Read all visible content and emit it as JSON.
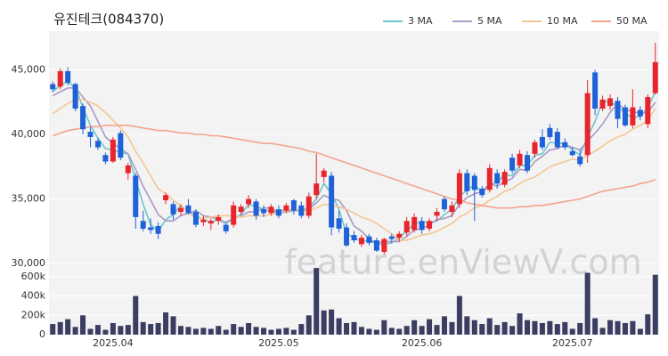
{
  "chart_data": [
    {
      "type": "candlestick",
      "title": "유진테크(084370)",
      "watermark": "feature.enViewV.com",
      "up_color": "#e8242c",
      "down_color": "#1f62d8",
      "open": [
        43900,
        43700,
        44900,
        43900,
        42200,
        40200,
        39500,
        38400,
        37900,
        40100,
        37000,
        36800,
        33300,
        32800,
        32900,
        34900,
        34600,
        34000,
        34500,
        34000,
        33200,
        33100,
        33300,
        33000,
        33000,
        34000,
        34600,
        34800,
        34200,
        33900,
        34200,
        34100,
        34900,
        34500,
        33700,
        35300,
        36700,
        36800,
        33500,
        32800,
        32200,
        31500,
        32100,
        31800,
        30900,
        32100,
        32000,
        32400,
        32600,
        33300,
        32700,
        33700,
        35000,
        34000,
        34600,
        37000,
        36800,
        35800,
        35700,
        37000,
        36100,
        38200,
        37600,
        38400,
        38500,
        39800,
        40500,
        40200,
        39400,
        38700,
        38300,
        38400,
        44800,
        42000,
        42200,
        42600,
        42100,
        40700,
        41900,
        40800,
        43200
      ],
      "high": [
        44100,
        45100,
        45200,
        44000,
        42400,
        40600,
        39700,
        38600,
        39800,
        40300,
        37800,
        37000,
        34100,
        33500,
        33200,
        35500,
        34800,
        34600,
        35000,
        34200,
        33700,
        33500,
        33800,
        33100,
        34800,
        34600,
        35300,
        35000,
        34500,
        34600,
        34500,
        34700,
        35000,
        34800,
        35500,
        38500,
        37400,
        37100,
        34100,
        33100,
        32500,
        32200,
        32300,
        32000,
        32000,
        32300,
        32500,
        33600,
        33900,
        33600,
        33500,
        34300,
        35200,
        34800,
        37300,
        37300,
        37000,
        36000,
        37700,
        37300,
        37300,
        38500,
        38800,
        38700,
        39600,
        40400,
        40800,
        40500,
        39700,
        39000,
        38800,
        44200,
        45000,
        43000,
        43100,
        42900,
        42300,
        43500,
        42200,
        43100,
        47100
      ],
      "low": [
        43300,
        43500,
        43800,
        41800,
        40000,
        39000,
        38800,
        37700,
        37800,
        38000,
        36500,
        32700,
        32500,
        32300,
        31900,
        34600,
        33400,
        33700,
        33800,
        32800,
        32900,
        32600,
        33000,
        32300,
        32800,
        33800,
        34300,
        33400,
        33600,
        33700,
        33500,
        33900,
        33800,
        33500,
        33500,
        35000,
        36300,
        32200,
        32400,
        31300,
        31600,
        31300,
        31400,
        30900,
        30700,
        31600,
        31700,
        32100,
        32400,
        32300,
        32500,
        33300,
        34000,
        33600,
        34300,
        35300,
        33300,
        35100,
        35500,
        35800,
        35900,
        37000,
        37400,
        37000,
        38200,
        38800,
        39600,
        38900,
        38800,
        38300,
        37500,
        37800,
        41500,
        41800,
        41900,
        40500,
        40600,
        40500,
        41100,
        40500,
        43100
      ],
      "close": [
        43500,
        44900,
        44000,
        42000,
        40400,
        39800,
        39000,
        37900,
        39600,
        38200,
        37600,
        33600,
        32700,
        32600,
        32300,
        35300,
        33800,
        34300,
        33900,
        33000,
        33400,
        33300,
        33600,
        32500,
        34500,
        34400,
        35000,
        33700,
        33900,
        34400,
        33700,
        34500,
        34100,
        33700,
        35200,
        36200,
        37200,
        32800,
        32700,
        31400,
        31800,
        32000,
        31600,
        31000,
        31900,
        31900,
        32300,
        33300,
        33600,
        32600,
        33300,
        34000,
        34200,
        34500,
        37000,
        35600,
        35700,
        35300,
        37400,
        36200,
        37100,
        37200,
        38500,
        37200,
        39400,
        39000,
        39800,
        39000,
        39000,
        38400,
        37700,
        43200,
        42000,
        42700,
        42800,
        41200,
        40700,
        42100,
        41400,
        42900,
        45600
      ],
      "series": [
        {
          "name": "3 MA",
          "color": "#6cc6cb",
          "values": [
            43300,
            43800,
            44100,
            43600,
            42100,
            40700,
            39700,
            38900,
            38800,
            38600,
            38500,
            36500,
            34600,
            33000,
            32500,
            33400,
            33800,
            34500,
            34000,
            33700,
            33400,
            33200,
            33400,
            33100,
            33500,
            33800,
            34600,
            34400,
            34200,
            34000,
            34000,
            34200,
            34100,
            34100,
            34300,
            35000,
            36200,
            35400,
            34200,
            32300,
            32000,
            31700,
            31800,
            31500,
            31500,
            31600,
            32000,
            32500,
            33100,
            33200,
            33200,
            33300,
            33800,
            34200,
            35200,
            35700,
            36100,
            35500,
            36100,
            36300,
            36900,
            36800,
            37600,
            37600,
            38400,
            38500,
            39400,
            39300,
            39300,
            38800,
            38400,
            39800,
            41000,
            42600,
            42500,
            42200,
            41600,
            41300,
            41400,
            42100,
            43300
          ]
        },
        {
          "name": "5 MA",
          "color": "#a99ac6",
          "values": [
            43000,
            43300,
            43600,
            43600,
            42900,
            42200,
            41000,
            39800,
            39300,
            38900,
            38500,
            37300,
            36000,
            34900,
            33800,
            33300,
            33300,
            33700,
            33900,
            34100,
            33700,
            33600,
            33400,
            33200,
            33500,
            33700,
            34000,
            34000,
            34300,
            34300,
            33900,
            34000,
            34100,
            34100,
            34200,
            34700,
            35300,
            35000,
            34900,
            34100,
            32900,
            32500,
            31900,
            31600,
            31700,
            31700,
            31700,
            32100,
            32600,
            32700,
            33000,
            33400,
            33500,
            33700,
            34600,
            35100,
            35400,
            35600,
            36200,
            36000,
            36300,
            36600,
            37300,
            37200,
            37900,
            38300,
            38800,
            38900,
            39200,
            39000,
            38800,
            39500,
            40100,
            40800,
            41700,
            42400,
            41900,
            41800,
            41600,
            41700,
            42500
          ]
        },
        {
          "name": "10 MA",
          "color": "#f4c692",
          "values": [
            41600,
            42000,
            42400,
            42700,
            42700,
            42500,
            42200,
            41700,
            41100,
            40500,
            39800,
            38700,
            37800,
            36800,
            35800,
            35400,
            34900,
            34500,
            34000,
            33500,
            33500,
            33600,
            33700,
            33700,
            33700,
            33600,
            33700,
            33700,
            33700,
            33800,
            33900,
            34100,
            34200,
            34100,
            34100,
            34300,
            34600,
            34500,
            34400,
            34200,
            33900,
            33600,
            33400,
            33100,
            32700,
            32300,
            31800,
            31800,
            32000,
            32200,
            32300,
            32500,
            32800,
            33100,
            33600,
            33900,
            34300,
            34500,
            34900,
            35200,
            35600,
            35800,
            36200,
            36500,
            36700,
            37100,
            37500,
            37700,
            37900,
            38100,
            38000,
            38400,
            38700,
            39100,
            39500,
            39800,
            40000,
            40400,
            40700,
            41100,
            42000
          ]
        },
        {
          "name": "50 MA",
          "color": "#f4a48c",
          "values": [
            39900,
            40100,
            40300,
            40400,
            40500,
            40600,
            40600,
            40700,
            40700,
            40700,
            40700,
            40600,
            40500,
            40400,
            40300,
            40300,
            40200,
            40100,
            40100,
            40000,
            40000,
            39900,
            39900,
            39800,
            39700,
            39600,
            39500,
            39400,
            39300,
            39300,
            39200,
            39100,
            39000,
            38900,
            38700,
            38600,
            38400,
            38200,
            38000,
            37800,
            37600,
            37400,
            37200,
            37000,
            36800,
            36600,
            36400,
            36200,
            36000,
            35800,
            35600,
            35400,
            35200,
            35000,
            34900,
            34700,
            34600,
            34500,
            34400,
            34300,
            34300,
            34300,
            34400,
            34400,
            34500,
            34500,
            34600,
            34700,
            34800,
            34900,
            35000,
            35200,
            35400,
            35600,
            35700,
            35800,
            35900,
            36000,
            36200,
            36300,
            36500
          ]
        }
      ],
      "ylim": [
        29800,
        48000
      ],
      "yticks": [
        {
          "value": 30000,
          "label": "30,000"
        },
        {
          "value": 35000,
          "label": "35,000"
        },
        {
          "value": 40000,
          "label": "40,000"
        },
        {
          "value": 45000,
          "label": "45,000"
        }
      ],
      "grid": true
    },
    {
      "type": "bar",
      "color": "#3b3d63",
      "categories": [
        null,
        null,
        null,
        null,
        null,
        null,
        null,
        null,
        "2025.04",
        null,
        null,
        null,
        null,
        null,
        null,
        null,
        null,
        null,
        null,
        null,
        null,
        null,
        null,
        null,
        null,
        null,
        null,
        null,
        null,
        null,
        "2025.05",
        null,
        null,
        null,
        null,
        null,
        null,
        null,
        null,
        null,
        null,
        null,
        null,
        null,
        null,
        null,
        null,
        null,
        null,
        "2025.06",
        null,
        null,
        null,
        null,
        null,
        null,
        null,
        null,
        null,
        null,
        null,
        null,
        null,
        null,
        null,
        null,
        null,
        null,
        null,
        "2025.07",
        null,
        null,
        null,
        null,
        null,
        null,
        null,
        null,
        null,
        null,
        null
      ],
      "values": [
        110000,
        130000,
        160000,
        80000,
        200000,
        60000,
        100000,
        50000,
        120000,
        90000,
        100000,
        400000,
        130000,
        110000,
        120000,
        230000,
        190000,
        90000,
        80000,
        60000,
        70000,
        60000,
        90000,
        50000,
        110000,
        80000,
        120000,
        80000,
        70000,
        50000,
        60000,
        70000,
        50000,
        110000,
        200000,
        690000,
        250000,
        260000,
        170000,
        120000,
        130000,
        80000,
        60000,
        50000,
        150000,
        70000,
        60000,
        90000,
        150000,
        90000,
        160000,
        100000,
        190000,
        130000,
        400000,
        190000,
        150000,
        110000,
        170000,
        100000,
        130000,
        90000,
        220000,
        150000,
        140000,
        120000,
        140000,
        110000,
        130000,
        60000,
        120000,
        640000,
        170000,
        70000,
        150000,
        140000,
        120000,
        140000,
        60000,
        210000,
        620000
      ],
      "ylim": [
        0,
        700000
      ],
      "yticks": [
        0,
        {
          "value": 200000,
          "label": "200k"
        },
        {
          "value": 400000,
          "label": "400k"
        },
        {
          "value": 600000,
          "label": "600k"
        }
      ]
    }
  ]
}
